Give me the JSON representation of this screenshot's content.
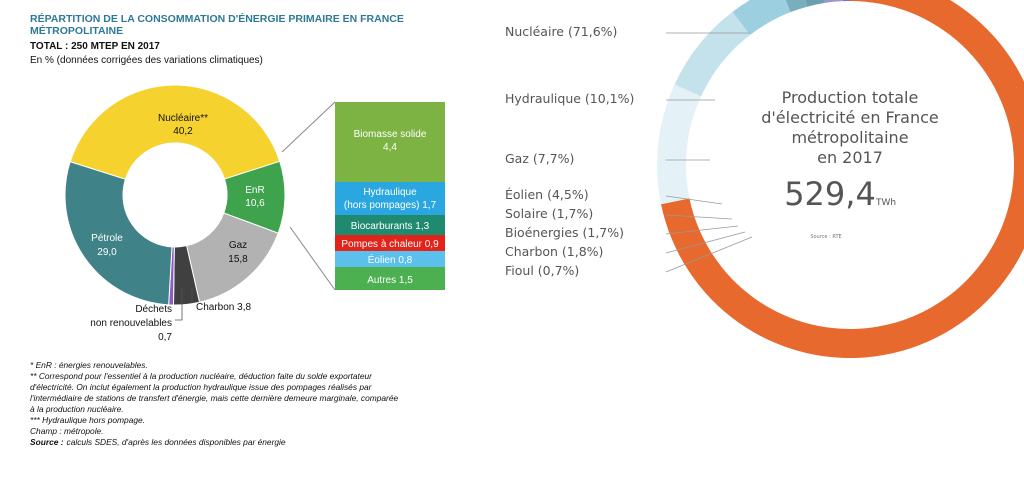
{
  "chart_data": [
    {
      "type": "pie",
      "title": "RÉPARTITION DE LA CONSOMMATION D'ÉNERGIE PRIMAIRE EN FRANCE MÉTROPOLITAINE",
      "title_lines": [
        "RÉPARTITION DE LA CONSOMMATION D'ÉNERGIE PRIMAIRE EN FRANCE",
        "MÉTROPOLITAINE"
      ],
      "subtitle": "TOTAL : 250 MTEP EN 2017",
      "unit_note": "En % (données corrigées des variations climatiques)",
      "slices": [
        {
          "name": "Nucléaire**",
          "value": 40.2,
          "value_label": "40,2",
          "color": "#f5d22e"
        },
        {
          "name": "EnR",
          "value": 10.6,
          "value_label": "10,6",
          "color": "#3fa34d"
        },
        {
          "name": "Gaz",
          "value": 15.8,
          "value_label": "15,8",
          "color": "#b2b2b2"
        },
        {
          "name": "Charbon",
          "value": 3.8,
          "value_label": "3,8",
          "color": "#404040"
        },
        {
          "name": "Déchets non renouvelables",
          "value": 0.7,
          "value_label": "0,7",
          "color": "#8e5cc4"
        },
        {
          "name": "Pétrole",
          "value": 29.0,
          "value_label": "29,0",
          "color": "#3f8288"
        }
      ],
      "slice_labels": {
        "nucleaire": "Nucléaire**",
        "enr": "EnR",
        "gaz": "Gaz",
        "charbon": "Charbon 3,8",
        "dechets_1": "Déchets",
        "dechets_2": "non renouvelables",
        "dechets_3": "0,7",
        "petrole": "Pétrole"
      },
      "enr_breakdown": [
        {
          "label": "Biomasse solide",
          "value": 4.4,
          "value_label": "4,4",
          "color": "#7cb342"
        },
        {
          "label": "Hydraulique (hors pompages) 1,7",
          "lines": [
            "Hydraulique",
            "(hors pompages) 1,7"
          ],
          "value": 1.7,
          "color": "#2aa7e0"
        },
        {
          "label": "Biocarburants 1,3",
          "value": 1.3,
          "value_label": "",
          "color": "#1f8a70"
        },
        {
          "label": "Pompes à chaleur 0,9",
          "value": 0.9,
          "color": "#e2231a"
        },
        {
          "label": "Éolien 0,8",
          "value": 0.8,
          "color": "#5bc0eb"
        },
        {
          "label": "Autres 1,5",
          "value": 1.5,
          "color": "#4caf50"
        }
      ],
      "footnotes": [
        "* EnR : énergies renouvelables.",
        "** Correspond pour l'essentiel à la production nucléaire, déduction faite du solde exportateur",
        "d'électricité. On inclut également la production hydraulique issue des pompages réalisés par",
        "l'intermédiaire de stations de transfert d'énergie, mais cette dernière demeure marginale, comparée",
        "à la production nucléaire.",
        "*** Hydraulique hors pompage.",
        "Champ : métropole."
      ],
      "source_label": "Source :",
      "source_text": "calculs SDES, d'après les données disponibles par énergie"
    },
    {
      "type": "pie",
      "center_lines": [
        "Production totale",
        "d'électricité en France",
        "métropolitaine",
        "en 2017"
      ],
      "total_value": "529,4",
      "total_unit": "TWh",
      "source": "Source : RTE",
      "slices": [
        {
          "name": "Nucléaire",
          "value": 71.6,
          "label": "Nucléaire (71,6%)",
          "color": "#e8692e"
        },
        {
          "name": "Hydraulique",
          "value": 10.1,
          "label": "Hydraulique (10,1%)",
          "color": "#e4f2f7"
        },
        {
          "name": "Gaz",
          "value": 7.7,
          "label": "Gaz (7,7%)",
          "color": "#c4e2ec"
        },
        {
          "name": "Éolien",
          "value": 4.5,
          "label": "Éolien (4,5%)",
          "color": "#9ccfe0"
        },
        {
          "name": "Solaire",
          "value": 1.7,
          "label": "Solaire (1,7%)",
          "color": "#79aebf"
        },
        {
          "name": "Bioénergies",
          "value": 1.7,
          "label": "Bioénergies (1,7%)",
          "color": "#6a9fb0"
        },
        {
          "name": "Charbon",
          "value": 1.8,
          "label": "Charbon (1,8%)",
          "color": "#9c95cf"
        },
        {
          "name": "Fioul",
          "value": 0.7,
          "label": "Fioul (0,7%)",
          "color": "#7a73b8"
        }
      ]
    }
  ]
}
